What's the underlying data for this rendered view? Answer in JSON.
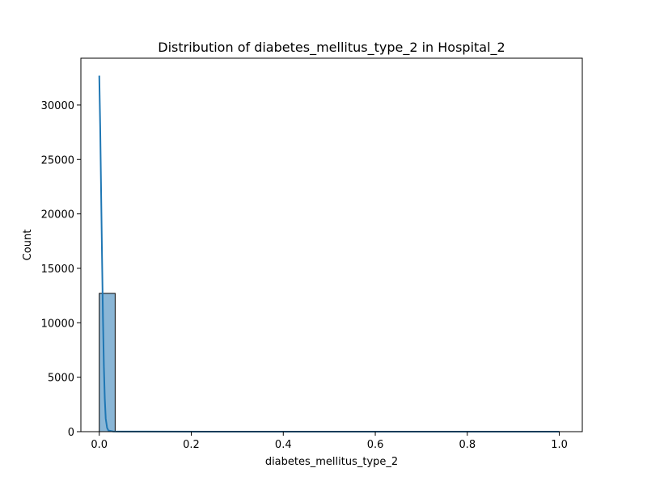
{
  "chart_data": {
    "type": "bar",
    "title": "Distribution of diabetes_mellitus_type_2 in Hospital_2",
    "xlabel": "diabetes_mellitus_type_2",
    "ylabel": "Count",
    "xlim": [
      -0.04,
      1.05
    ],
    "ylim": [
      0,
      34300
    ],
    "x_ticks": [
      {
        "value": 0.0,
        "label": "0.0"
      },
      {
        "value": 0.2,
        "label": "0.2"
      },
      {
        "value": 0.4,
        "label": "0.4"
      },
      {
        "value": 0.6,
        "label": "0.6"
      },
      {
        "value": 0.8,
        "label": "0.8"
      },
      {
        "value": 1.0,
        "label": "1.0"
      }
    ],
    "y_ticks": [
      {
        "value": 0,
        "label": "0"
      },
      {
        "value": 5000,
        "label": "5000"
      },
      {
        "value": 10000,
        "label": "10000"
      },
      {
        "value": 15000,
        "label": "15000"
      },
      {
        "value": 20000,
        "label": "20000"
      },
      {
        "value": 25000,
        "label": "25000"
      },
      {
        "value": 30000,
        "label": "30000"
      }
    ],
    "bins": [
      {
        "x0": 0.0,
        "x1": 0.0345,
        "count": 12700
      }
    ],
    "kde": {
      "x": [
        0.0,
        0.002,
        0.004,
        0.006,
        0.008,
        0.01,
        0.012,
        0.014,
        0.017,
        0.02,
        0.03,
        0.05,
        0.1,
        0.3,
        0.5,
        0.7,
        1.0
      ],
      "y": [
        32700,
        28000,
        22000,
        16000,
        10500,
        6000,
        3000,
        1200,
        350,
        100,
        20,
        8,
        5,
        3,
        3,
        3,
        3
      ]
    },
    "grid": false,
    "bar_color": "#8ab6d6",
    "bar_edge_color": "#000000",
    "line_color": "#1f77b4"
  }
}
